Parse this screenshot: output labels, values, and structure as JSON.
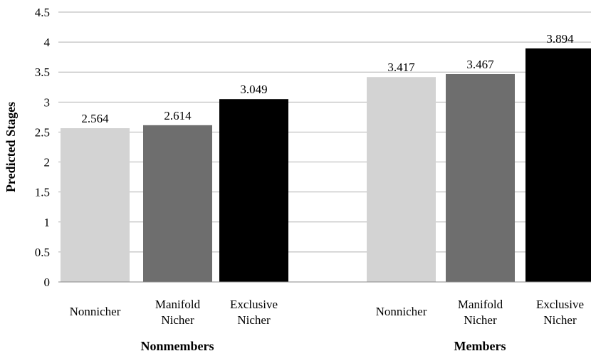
{
  "chart_data": {
    "type": "bar",
    "ylabel": "Predicted Stages",
    "ylim": [
      0,
      4.5
    ],
    "yticks": [
      "0",
      "0.5",
      "1",
      "1.5",
      "2",
      "2.5",
      "3",
      "3.5",
      "4",
      "4.5"
    ],
    "grid": true,
    "groups": [
      {
        "label": "Nonmembers",
        "bars": [
          {
            "category": [
              "Nonnicher"
            ],
            "value": 2.564,
            "value_label": "2.564",
            "color": "#d3d3d3"
          },
          {
            "category": [
              "Manifold",
              "Nicher"
            ],
            "value": 2.614,
            "value_label": "2.614",
            "color": "#6e6e6e"
          },
          {
            "category": [
              "Exclusive",
              "Nicher"
            ],
            "value": 3.049,
            "value_label": "3.049",
            "color": "#000000"
          }
        ]
      },
      {
        "label": "Members",
        "bars": [
          {
            "category": [
              "Nonnicher"
            ],
            "value": 3.417,
            "value_label": "3.417",
            "color": "#d3d3d3"
          },
          {
            "category": [
              "Manifold",
              "Nicher"
            ],
            "value": 3.467,
            "value_label": "3.467",
            "color": "#6e6e6e"
          },
          {
            "category": [
              "Exclusive",
              "Nicher"
            ],
            "value": 3.894,
            "value_label": "3.894",
            "color": "#000000"
          }
        ]
      }
    ]
  }
}
